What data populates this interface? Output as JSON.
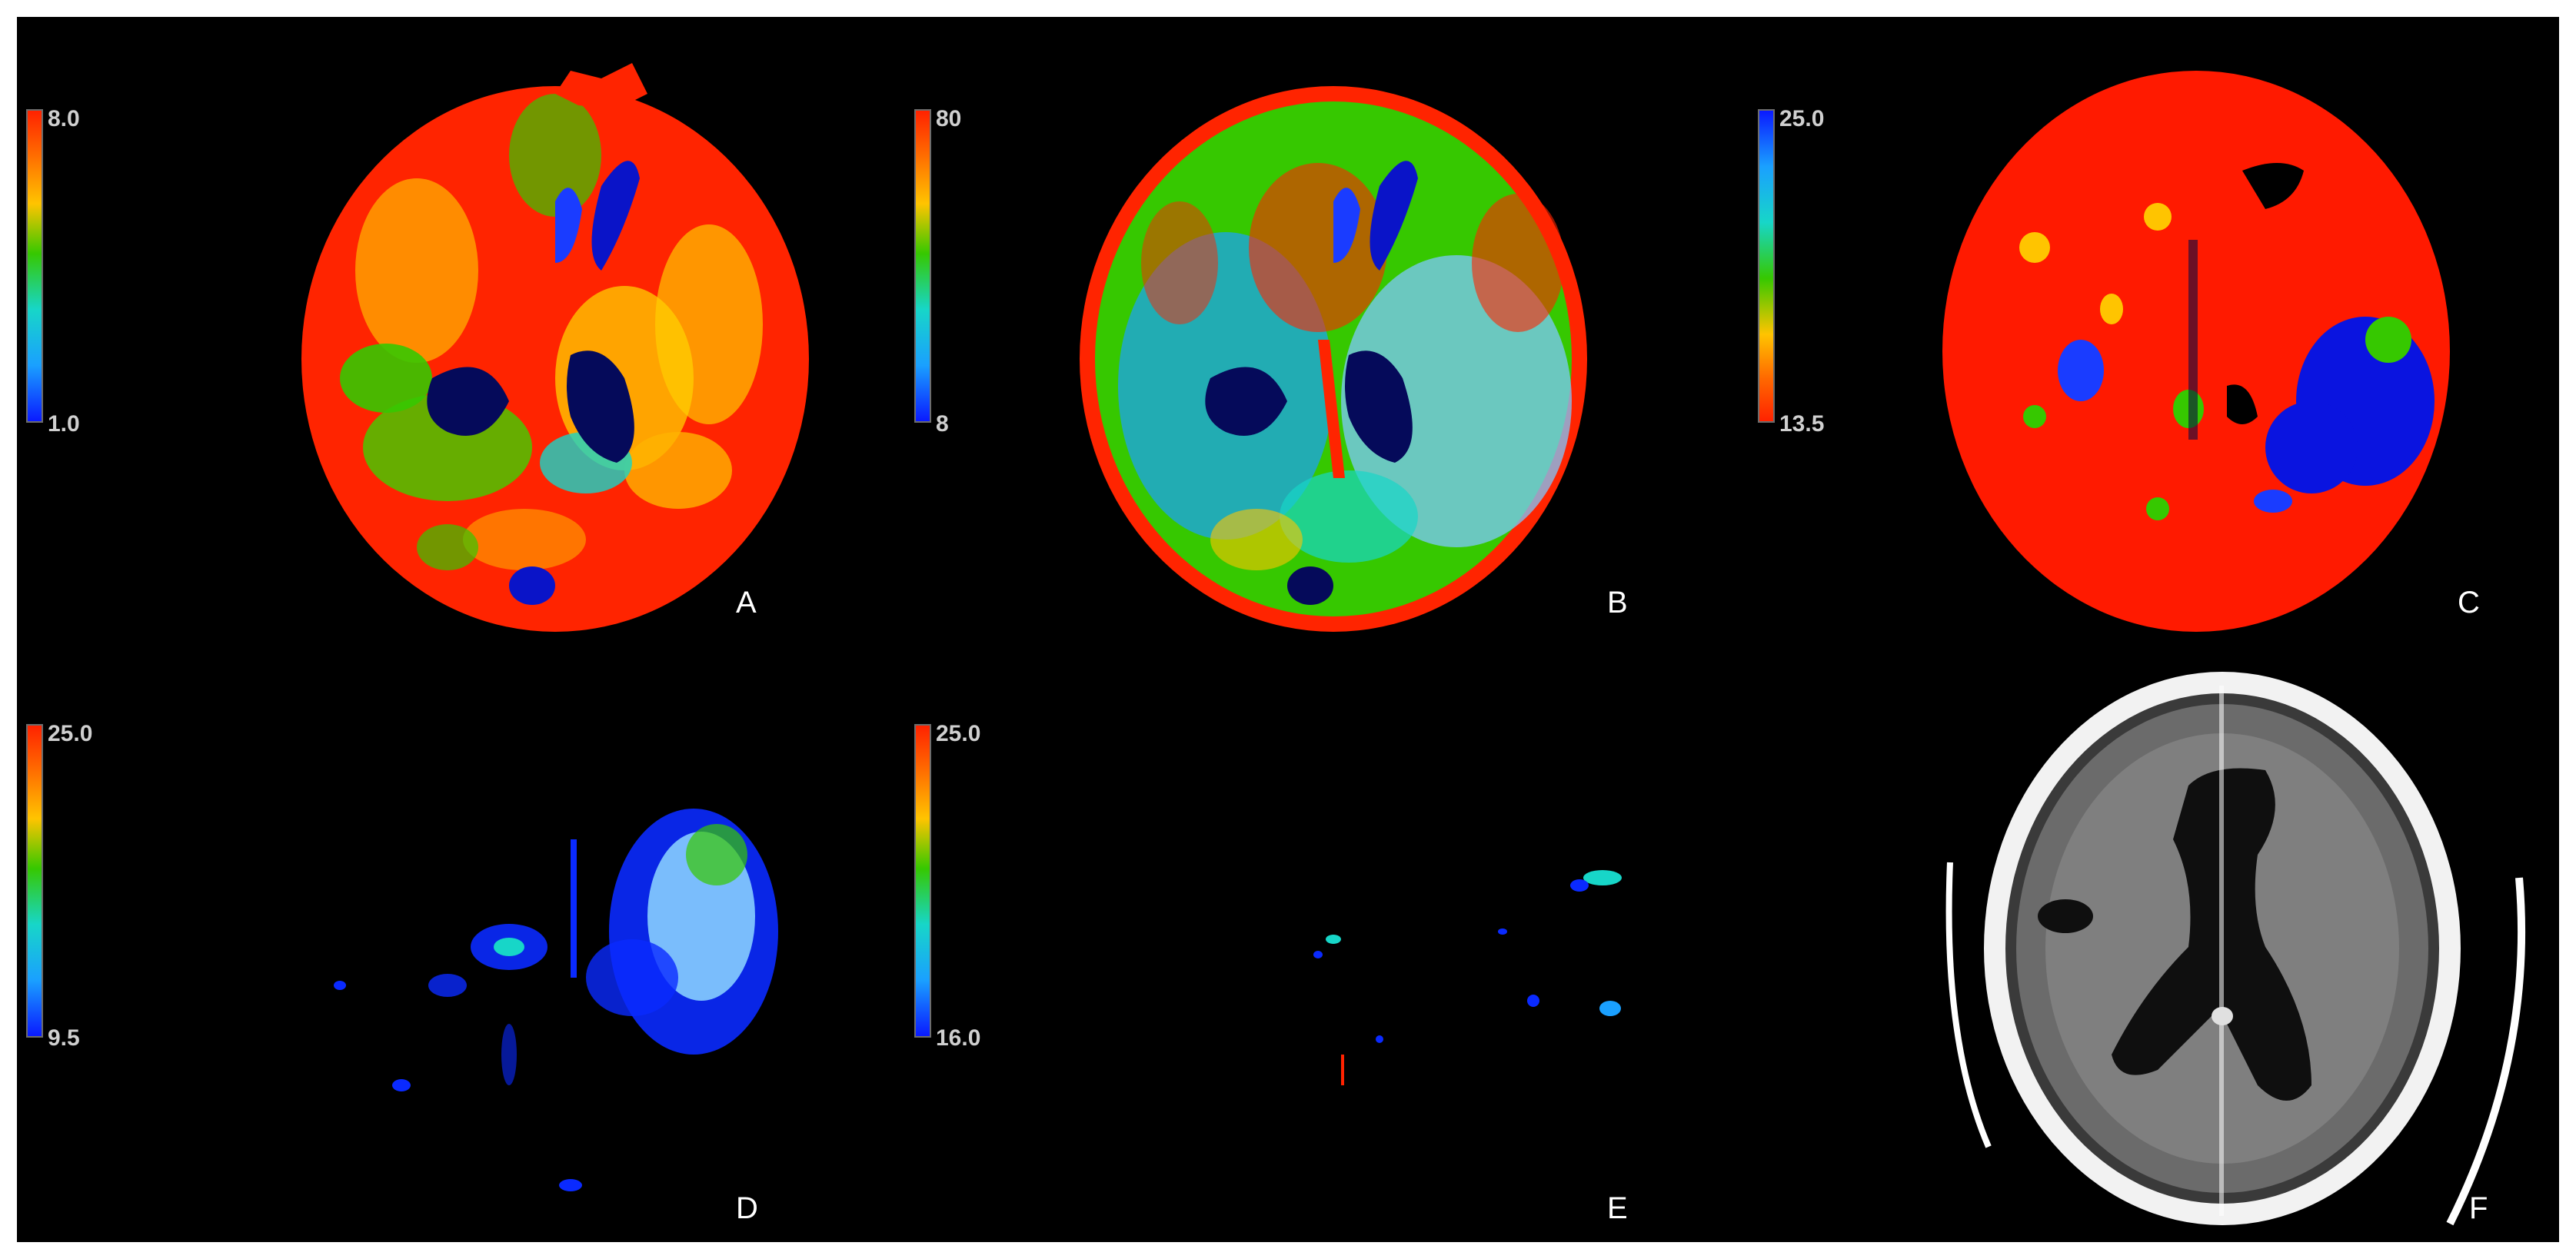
{
  "panels": [
    {
      "id": "A",
      "label": "A",
      "scale": {
        "top": "8.0",
        "bottom": "1.0",
        "gradient": "red-to-blue"
      },
      "map": "rainbow-red-dominant"
    },
    {
      "id": "B",
      "label": "B",
      "scale": {
        "top": "80",
        "bottom": "8",
        "gradient": "red-to-blue"
      },
      "map": "rainbow-mixed"
    },
    {
      "id": "C",
      "label": "C",
      "scale": {
        "top": "25.0",
        "bottom": "13.5",
        "gradient": "blue-to-red"
      },
      "map": "red-with-blue-region"
    },
    {
      "id": "D",
      "label": "D",
      "scale": {
        "top": "25.0",
        "bottom": "9.5",
        "gradient": "red-to-blue"
      },
      "map": "sparse-blue-region"
    },
    {
      "id": "E",
      "label": "E",
      "scale": {
        "top": "25.0",
        "bottom": "16.0",
        "gradient": "red-to-blue"
      },
      "map": "very-sparse"
    },
    {
      "id": "F",
      "label": "F",
      "scale": null,
      "map": "non-contrast-ct-grayscale"
    }
  ],
  "colors": {
    "background": "#000000",
    "label": "#ffffff",
    "scale_text": "#cfcfcf",
    "red": "#ff2200",
    "yellow": "#ffc400",
    "green": "#36c800",
    "cyan": "#17d6c8",
    "blue": "#0a1aff"
  }
}
